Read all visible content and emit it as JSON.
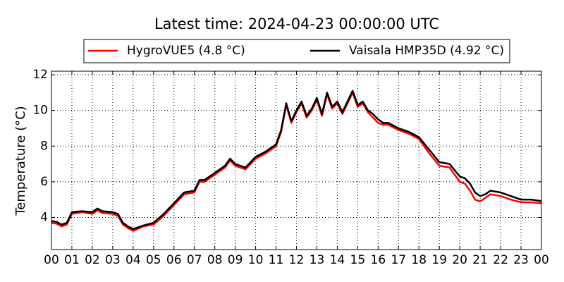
{
  "chart_data": {
    "type": "line",
    "title": "Latest time: 2024-04-23 00:00:00 UTC",
    "y_label": "Temperature (°C)",
    "x": [
      0,
      0.25,
      0.5,
      0.75,
      1,
      1.5,
      2,
      2.25,
      2.5,
      3,
      3.25,
      3.5,
      3.75,
      4,
      4.5,
      5,
      5.5,
      6,
      6.5,
      7,
      7.25,
      7.5,
      8,
      8.5,
      8.75,
      9,
      9.5,
      10,
      10.5,
      11,
      11.25,
      11.5,
      11.75,
      12,
      12.25,
      12.5,
      12.75,
      13,
      13.25,
      13.5,
      13.75,
      14,
      14.25,
      14.5,
      14.75,
      15,
      15.25,
      15.5,
      15.75,
      16,
      16.25,
      16.5,
      17,
      17.5,
      18,
      18.5,
      19,
      19.5,
      20,
      20.25,
      20.5,
      20.75,
      21,
      21.25,
      21.5,
      22,
      22.5,
      23,
      23.5,
      24
    ],
    "series": [
      {
        "name": "HygroVUE5 (4.8 °C)",
        "color": "#ff0000",
        "values": [
          3.7,
          3.65,
          3.5,
          3.6,
          4.2,
          4.3,
          4.2,
          4.4,
          4.25,
          4.2,
          4.1,
          3.6,
          3.4,
          3.25,
          3.5,
          3.6,
          4.1,
          4.7,
          5.3,
          5.4,
          6.0,
          6.0,
          6.4,
          6.8,
          7.2,
          6.9,
          6.7,
          7.3,
          7.6,
          8.0,
          8.8,
          10.3,
          9.3,
          9.9,
          10.4,
          9.6,
          10.0,
          10.6,
          9.7,
          10.9,
          10.1,
          10.4,
          9.8,
          10.4,
          11.0,
          10.2,
          10.4,
          9.9,
          9.6,
          9.3,
          9.2,
          9.2,
          8.9,
          8.7,
          8.4,
          7.6,
          6.9,
          6.8,
          6.0,
          5.9,
          5.5,
          5.0,
          4.9,
          5.1,
          5.3,
          5.2,
          5.0,
          4.85,
          4.85,
          4.8
        ]
      },
      {
        "name": "Vaisala HMP35D (4.92 °C)",
        "color": "#000000",
        "values": [
          3.8,
          3.75,
          3.6,
          3.7,
          4.3,
          4.35,
          4.3,
          4.5,
          4.35,
          4.3,
          4.2,
          3.7,
          3.5,
          3.35,
          3.55,
          3.7,
          4.2,
          4.8,
          5.4,
          5.5,
          6.1,
          6.1,
          6.5,
          6.9,
          7.3,
          7.0,
          6.8,
          7.4,
          7.7,
          8.1,
          8.9,
          10.4,
          9.4,
          10.0,
          10.5,
          9.7,
          10.1,
          10.7,
          9.8,
          11.0,
          10.2,
          10.5,
          9.9,
          10.5,
          11.1,
          10.3,
          10.5,
          10.0,
          9.8,
          9.5,
          9.3,
          9.3,
          9.0,
          8.8,
          8.5,
          7.8,
          7.1,
          7.0,
          6.3,
          6.2,
          5.9,
          5.4,
          5.2,
          5.3,
          5.5,
          5.4,
          5.2,
          5.0,
          5.0,
          4.92
        ]
      }
    ],
    "xlim": [
      0,
      24
    ],
    "xticks": [
      {
        "value": 0,
        "label": "00"
      },
      {
        "value": 1,
        "label": "01"
      },
      {
        "value": 2,
        "label": "02"
      },
      {
        "value": 3,
        "label": "03"
      },
      {
        "value": 4,
        "label": "04"
      },
      {
        "value": 5,
        "label": "05"
      },
      {
        "value": 6,
        "label": "06"
      },
      {
        "value": 7,
        "label": "07"
      },
      {
        "value": 8,
        "label": "08"
      },
      {
        "value": 9,
        "label": "09"
      },
      {
        "value": 10,
        "label": "10"
      },
      {
        "value": 11,
        "label": "11"
      },
      {
        "value": 12,
        "label": "12"
      },
      {
        "value": 13,
        "label": "13"
      },
      {
        "value": 14,
        "label": "14"
      },
      {
        "value": 15,
        "label": "15"
      },
      {
        "value": 16,
        "label": "16"
      },
      {
        "value": 17,
        "label": "17"
      },
      {
        "value": 18,
        "label": "18"
      },
      {
        "value": 19,
        "label": "19"
      },
      {
        "value": 20,
        "label": "20"
      },
      {
        "value": 21,
        "label": "21"
      },
      {
        "value": 22,
        "label": "22"
      },
      {
        "value": 23,
        "label": "23"
      },
      {
        "value": 24,
        "label": "00"
      }
    ],
    "ylim": [
      2.2,
      12.2
    ],
    "yticks": [
      4,
      6,
      8,
      10,
      12
    ],
    "grid": true,
    "legend": "top"
  }
}
